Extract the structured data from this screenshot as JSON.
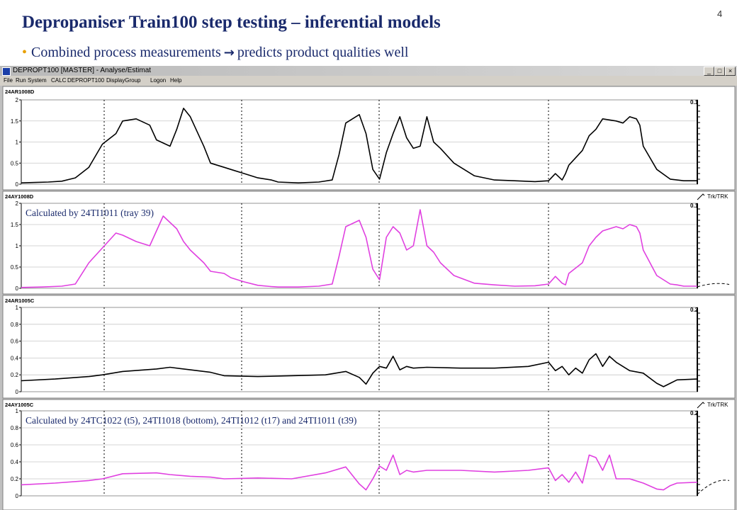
{
  "slide": {
    "title": "Depropaniser Train100 step testing – inferential models",
    "bullet_pre": "Combined process measurements",
    "bullet_arrow": "→",
    "bullet_post": "predicts product qualities well",
    "page_number": "4"
  },
  "window": {
    "title": "DEPROPT100 [MASTER] - Analyse/Estimat",
    "min_label": "_",
    "max_label": "□",
    "close_label": "×"
  },
  "menu": [
    "File",
    "Run",
    "System",
    "CALC",
    "DEPROPT100",
    "DisplayGroup",
    "Logon",
    "Help"
  ],
  "colors": {
    "measured": "#000000",
    "calculated": "#e040e0",
    "annotation": "#1a2a6c",
    "title": "#1a2a6c",
    "bullet": "#e8a000"
  },
  "chart_data": [
    {
      "type": "line",
      "title": "24AR1008D",
      "ylim": [
        0,
        2
      ],
      "yticks": [
        "0",
        "0.5",
        "1",
        "1.5",
        "2"
      ],
      "cursor_value": "0.1",
      "series_color": "#000000",
      "trk_label": "",
      "annotation": "",
      "x": [
        0,
        2,
        4,
        6,
        8,
        10,
        12,
        14,
        15,
        17,
        19,
        20,
        22,
        23,
        24,
        25,
        27,
        28,
        30,
        31,
        33,
        35,
        37,
        38,
        41,
        44,
        46,
        47,
        48,
        50,
        51,
        52,
        53,
        54,
        55,
        56,
        57,
        58,
        59,
        60,
        61,
        62,
        64,
        67,
        70,
        73,
        76,
        78,
        79,
        80,
        80.5,
        81,
        83,
        84,
        85,
        86,
        88,
        89,
        90,
        91,
        91.5,
        92,
        94,
        96,
        97,
        98,
        100
      ],
      "values": [
        0.03,
        0.04,
        0.05,
        0.07,
        0.15,
        0.4,
        0.95,
        1.2,
        1.5,
        1.55,
        1.4,
        1.05,
        0.9,
        1.3,
        1.8,
        1.6,
        0.9,
        0.5,
        0.4,
        0.35,
        0.25,
        0.15,
        0.1,
        0.05,
        0.03,
        0.05,
        0.1,
        0.7,
        1.45,
        1.65,
        1.2,
        0.35,
        0.12,
        0.75,
        1.2,
        1.6,
        1.1,
        0.85,
        0.9,
        1.6,
        1.0,
        0.85,
        0.5,
        0.2,
        0.1,
        0.08,
        0.06,
        0.08,
        0.25,
        0.1,
        0.25,
        0.45,
        0.8,
        1.15,
        1.3,
        1.55,
        1.5,
        1.45,
        1.6,
        1.55,
        1.4,
        0.9,
        0.35,
        0.12,
        0.1,
        0.08,
        0.08
      ]
    },
    {
      "type": "line",
      "title": "24AY1008D",
      "ylim": [
        0,
        2
      ],
      "yticks": [
        "0",
        "0.5",
        "1",
        "1.5",
        "2"
      ],
      "cursor_value": "0.1",
      "series_color": "#e040e0",
      "trk_label": "Trk/TRK",
      "annotation": "Calculated by 24TI1011 (tray 39)",
      "x": [
        0,
        3,
        6,
        8,
        10,
        12,
        14,
        15,
        17,
        19,
        21,
        23,
        24,
        25,
        27,
        28,
        30,
        31,
        33,
        35,
        37,
        38,
        41,
        44,
        46,
        47,
        48,
        50,
        51,
        52,
        53,
        54,
        55,
        56,
        57,
        58,
        59,
        60,
        61,
        62,
        64,
        67,
        70,
        73,
        76,
        78,
        79,
        80,
        80.5,
        81,
        83,
        84,
        85,
        86,
        88,
        89,
        90,
        91,
        91.5,
        92,
        94,
        96,
        97,
        98,
        100
      ],
      "values": [
        0.02,
        0.03,
        0.05,
        0.1,
        0.6,
        0.95,
        1.3,
        1.25,
        1.1,
        1.0,
        1.7,
        1.4,
        1.1,
        0.9,
        0.6,
        0.4,
        0.35,
        0.25,
        0.15,
        0.07,
        0.04,
        0.03,
        0.03,
        0.05,
        0.1,
        0.75,
        1.45,
        1.6,
        1.2,
        0.45,
        0.2,
        1.2,
        1.45,
        1.3,
        0.9,
        1.0,
        1.85,
        1.0,
        0.85,
        0.6,
        0.3,
        0.12,
        0.08,
        0.05,
        0.06,
        0.1,
        0.28,
        0.12,
        0.08,
        0.35,
        0.6,
        1.0,
        1.2,
        1.35,
        1.45,
        1.4,
        1.5,
        1.45,
        1.3,
        0.9,
        0.3,
        0.1,
        0.08,
        0.05,
        0.05
      ]
    },
    {
      "type": "line",
      "title": "24AR1005C",
      "ylim": [
        0,
        1
      ],
      "yticks": [
        "0",
        "0.2",
        "0.4",
        "0.6",
        "0.8",
        "1"
      ],
      "cursor_value": "0.2",
      "series_color": "#000000",
      "trk_label": "",
      "annotation": "",
      "x": [
        0,
        5,
        10,
        12,
        15,
        20,
        22,
        25,
        28,
        30,
        35,
        40,
        45,
        48,
        50,
        51,
        52,
        53,
        54,
        55,
        56,
        57,
        58,
        60,
        65,
        70,
        75,
        78,
        79,
        80,
        81,
        82,
        83,
        84,
        85,
        86,
        87,
        88,
        90,
        92,
        94,
        95,
        96,
        97,
        100
      ],
      "values": [
        0.13,
        0.15,
        0.18,
        0.2,
        0.24,
        0.27,
        0.29,
        0.26,
        0.23,
        0.19,
        0.18,
        0.19,
        0.2,
        0.24,
        0.17,
        0.09,
        0.22,
        0.3,
        0.28,
        0.42,
        0.26,
        0.3,
        0.28,
        0.29,
        0.28,
        0.28,
        0.3,
        0.35,
        0.25,
        0.3,
        0.2,
        0.28,
        0.22,
        0.38,
        0.45,
        0.3,
        0.42,
        0.35,
        0.25,
        0.22,
        0.1,
        0.06,
        0.1,
        0.14,
        0.15
      ]
    },
    {
      "type": "line",
      "title": "24AY1005C",
      "ylim": [
        0,
        1
      ],
      "yticks": [
        "0",
        "0.2",
        "0.4",
        "0.6",
        "0.8",
        "1"
      ],
      "cursor_value": "0.2",
      "series_color": "#e040e0",
      "trk_label": "Trk/TRK",
      "annotation": "Calculated by 24TC1022 (t5), 24TI1018 (bottom), 24TI1012 (t17) and 24TI1011 (t39)",
      "x": [
        0,
        5,
        10,
        12,
        15,
        20,
        22,
        25,
        28,
        30,
        35,
        40,
        45,
        48,
        50,
        51,
        52,
        53,
        54,
        55,
        56,
        57,
        58,
        60,
        65,
        70,
        75,
        78,
        79,
        80,
        81,
        82,
        83,
        84,
        85,
        86,
        87,
        88,
        90,
        92,
        94,
        95,
        96,
        97,
        100
      ],
      "values": [
        0.13,
        0.15,
        0.18,
        0.2,
        0.26,
        0.27,
        0.25,
        0.23,
        0.22,
        0.2,
        0.21,
        0.2,
        0.27,
        0.34,
        0.14,
        0.07,
        0.2,
        0.35,
        0.3,
        0.48,
        0.25,
        0.3,
        0.28,
        0.3,
        0.3,
        0.28,
        0.3,
        0.33,
        0.18,
        0.25,
        0.16,
        0.28,
        0.15,
        0.48,
        0.45,
        0.3,
        0.48,
        0.2,
        0.2,
        0.15,
        0.08,
        0.07,
        0.12,
        0.15,
        0.16
      ]
    }
  ]
}
